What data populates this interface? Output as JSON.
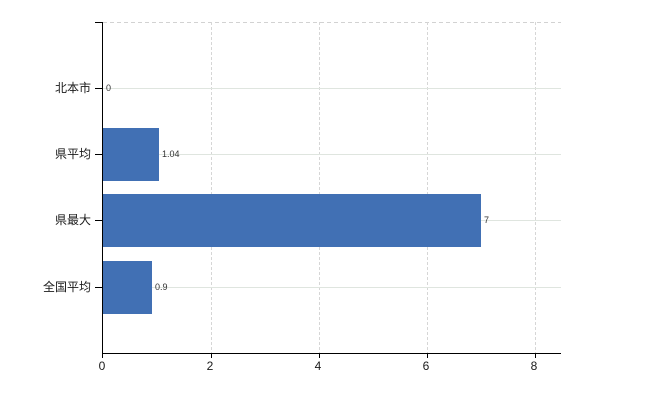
{
  "chart_data": {
    "type": "bar",
    "orientation": "horizontal",
    "title": "",
    "xlabel": "",
    "ylabel": "",
    "categories": [
      "北本市",
      "県平均",
      "県最大",
      "全国平均"
    ],
    "values": [
      0,
      1.04,
      7,
      0.9
    ],
    "value_labels": [
      "0",
      "1.04",
      "7",
      "0.9"
    ],
    "x_ticks": [
      "0",
      "2",
      "4",
      "6",
      "8"
    ],
    "xlim": [
      0,
      8.5
    ],
    "grid": true,
    "legend": false,
    "bar_color": "#4170b4",
    "hgrid_color": "#dfe5df",
    "vgrid_color": "#d6d6d6",
    "axis_color": "#000000"
  }
}
